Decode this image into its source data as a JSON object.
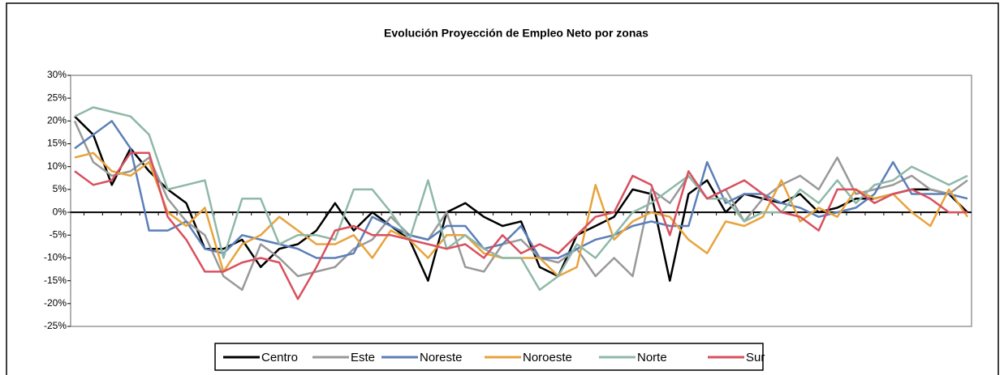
{
  "chart_data": {
    "type": "line",
    "title": "Evolución Proyección de Empleo Neto por zonas",
    "categories": [
      null,
      null,
      null,
      null,
      null,
      null,
      null,
      null,
      null,
      null,
      null,
      null,
      null,
      null,
      null,
      null,
      null,
      null,
      null,
      null,
      null,
      null,
      null,
      null,
      null,
      null,
      null,
      null,
      null,
      null,
      null,
      null,
      null,
      null,
      null,
      null,
      null,
      null,
      null,
      null,
      null,
      null,
      null,
      null,
      null,
      null,
      null,
      null,
      null
    ],
    "ylim": [
      -25,
      30
    ],
    "yticks": [
      {
        "value": -25,
        "label": "-25%"
      },
      {
        "value": -20,
        "label": "-20%"
      },
      {
        "value": -15,
        "label": "-15%"
      },
      {
        "value": -10,
        "label": "-10%"
      },
      {
        "value": -5,
        "label": "-5%"
      },
      {
        "value": 0,
        "label": "0%"
      },
      {
        "value": 5,
        "label": "5%"
      },
      {
        "value": 10,
        "label": "10%"
      },
      {
        "value": 15,
        "label": "15%"
      },
      {
        "value": 20,
        "label": "20%"
      },
      {
        "value": 25,
        "label": "25%"
      },
      {
        "value": 30,
        "label": "30%"
      }
    ],
    "grid": false,
    "legend": "bottom",
    "series": [
      {
        "name": "Centro",
        "color": "#000000",
        "values": [
          21,
          17,
          6,
          14,
          9,
          5,
          2,
          -8,
          -8,
          -6,
          -12,
          -8,
          -7,
          -4,
          2,
          -4,
          0,
          -3,
          -6,
          -15,
          0,
          2,
          -1,
          -3,
          -2,
          -12,
          -14,
          -5,
          -3,
          -1,
          5,
          4,
          -15,
          4,
          7,
          0,
          4,
          3,
          2,
          4,
          0,
          1,
          3,
          3,
          4,
          5,
          5,
          4,
          0
        ]
      },
      {
        "name": "Este",
        "color": "#999999",
        "values": [
          20,
          11,
          8,
          9,
          12,
          3,
          -2,
          -5,
          -14,
          -17,
          -7,
          -10,
          -14,
          -13,
          -12,
          -8,
          -6,
          -1,
          -5,
          -6,
          0,
          -12,
          -13,
          -7,
          -6,
          -10,
          -11,
          -8,
          -14,
          -10,
          -14,
          5,
          2,
          8,
          3,
          5,
          -2,
          3,
          6,
          8,
          5,
          12,
          4,
          5,
          6,
          8,
          5,
          4,
          7
        ]
      },
      {
        "name": "Noreste",
        "color": "#5b7fb8",
        "values": [
          14,
          17,
          20,
          14,
          -4,
          -4,
          -2,
          -8,
          -9,
          -5,
          -6,
          -7,
          -8,
          -10,
          -10,
          -9,
          -1,
          -3,
          -5,
          -6,
          -3,
          -3,
          -8,
          -7,
          -3,
          -10,
          -10,
          -8,
          -6,
          -5,
          -3,
          -2,
          -3,
          -3,
          11,
          2,
          4,
          4,
          2,
          1,
          -1,
          0,
          1,
          4,
          11,
          4,
          4,
          4,
          3
        ]
      },
      {
        "name": "Noroeste",
        "color": "#e8a33c",
        "values": [
          12,
          13,
          9,
          8,
          11,
          0,
          -3,
          1,
          -13,
          -7,
          -5,
          -1,
          -4,
          -7,
          -7,
          -5,
          -10,
          -4,
          -6,
          -10,
          -5,
          -5,
          -9,
          -10,
          -10,
          -10,
          -14,
          -12,
          6,
          -6,
          -2,
          0,
          -1,
          -6,
          -9,
          -2,
          -3,
          -1,
          7,
          -2,
          1,
          -1,
          5,
          3,
          4,
          0,
          -3,
          5,
          -1
        ]
      },
      {
        "name": "Norte",
        "color": "#8fb8a8",
        "values": [
          21,
          23,
          22,
          21,
          17,
          5,
          6,
          7,
          -10,
          3,
          3,
          -7,
          -5,
          -5,
          -6,
          5,
          5,
          0,
          -6,
          7,
          -8,
          -5,
          -8,
          -10,
          -10,
          -17,
          -14,
          -7,
          -10,
          -5,
          0,
          2,
          5,
          8,
          3,
          3,
          -2,
          0,
          0,
          5,
          2,
          7,
          2,
          6,
          7,
          10,
          8,
          6,
          8
        ]
      },
      {
        "name": "Sur",
        "color": "#d9505e",
        "values": [
          9,
          6,
          7,
          13,
          13,
          -1,
          -6,
          -13,
          -13,
          -11,
          -10,
          -11,
          -19,
          -12,
          -4,
          -3,
          -5,
          -5,
          -6,
          -7,
          -8,
          -7,
          -10,
          -5,
          -9,
          -7,
          -9,
          -5,
          -1,
          0,
          8,
          6,
          -5,
          9,
          3,
          5,
          7,
          4,
          0,
          -1,
          -4,
          5,
          5,
          2,
          4,
          5,
          3,
          0,
          0
        ]
      }
    ]
  }
}
